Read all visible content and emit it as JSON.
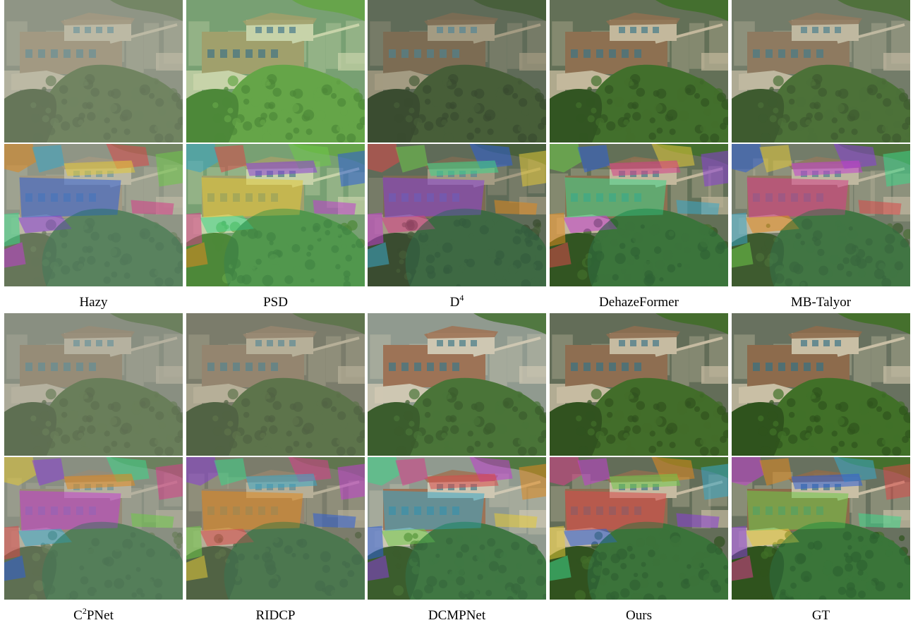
{
  "figure": {
    "row1_labels": [
      {
        "base": "Hazy",
        "sup": ""
      },
      {
        "base": "PSD",
        "sup": ""
      },
      {
        "base": "D",
        "sup": "4"
      },
      {
        "base": "DehazeFormer",
        "sup": ""
      },
      {
        "base": "MB-Talyor",
        "sup": ""
      }
    ],
    "row2_labels": [
      {
        "base": "C",
        "sup": "2",
        "tail": "PNet"
      },
      {
        "base": "RIDCP",
        "sup": ""
      },
      {
        "base": "DCMPNet",
        "sup": ""
      },
      {
        "base": "Ours",
        "sup": ""
      },
      {
        "base": "GT",
        "sup": ""
      }
    ]
  },
  "styles": {
    "hazy": {
      "sky": "#6d7363",
      "house": "#8a7a5e",
      "roof": "#b3ab93",
      "tree": "#3f5a2c",
      "tree_dark": "#2e4420",
      "haze": 0.35
    },
    "psd": {
      "sky": "#6f9a6a",
      "house": "#9b9a63",
      "roof": "#c7d3a6",
      "tree": "#5aa03a",
      "tree_dark": "#3f7f2a",
      "haze": 0.1
    },
    "d4": {
      "sky": "#4c5a45",
      "house": "#6e5b3f",
      "roof": "#9c9276",
      "tree": "#2f4a1f",
      "tree_dark": "#203516",
      "haze": 0.15
    },
    "dehazeformer": {
      "sky": "#5d6b52",
      "house": "#8a6b4b",
      "roof": "#c2b79a",
      "tree": "#3a6a24",
      "tree_dark": "#2a4f1a",
      "haze": 0.05
    },
    "mbtaylor": {
      "sky": "#67705d",
      "house": "#866e52",
      "roof": "#bdb49b",
      "tree": "#3b6325",
      "tree_dark": "#2b4a1b",
      "haze": 0.12
    },
    "c2pnet": {
      "sky": "#6b7264",
      "house": "#7d6d55",
      "roof": "#a9a28e",
      "tree": "#3d5a2b",
      "tree_dark": "#2d4420",
      "haze": 0.3
    },
    "ridcp": {
      "sky": "#646552",
      "house": "#857058",
      "roof": "#b0a68c",
      "tree": "#3e5a2a",
      "tree_dark": "#2f4520",
      "haze": 0.22
    },
    "dcmpnet": {
      "sky": "#8b958a",
      "house": "#9a6b4c",
      "roof": "#cfc6b0",
      "tree": "#3f6c2c",
      "tree_dark": "#2f5320",
      "haze": 0.08
    },
    "ours": {
      "sky": "#5f6a54",
      "house": "#8c6b4c",
      "roof": "#c6bba0",
      "tree": "#3d6a24",
      "tree_dark": "#2b4e18",
      "haze": 0.04
    },
    "gt": {
      "sky": "#66705d",
      "house": "#8c6a4a",
      "roof": "#c9bfa5",
      "tree": "#3f6f25",
      "tree_dark": "#2c511a",
      "haze": 0.02
    }
  },
  "segmentation_palette": [
    "#c23fd0",
    "#e08a20",
    "#3aa7c7",
    "#d94a4a",
    "#6fc94a",
    "#2f5fd6",
    "#e3c93a",
    "#8a3fd6",
    "#3fd68a",
    "#d63f8a"
  ]
}
